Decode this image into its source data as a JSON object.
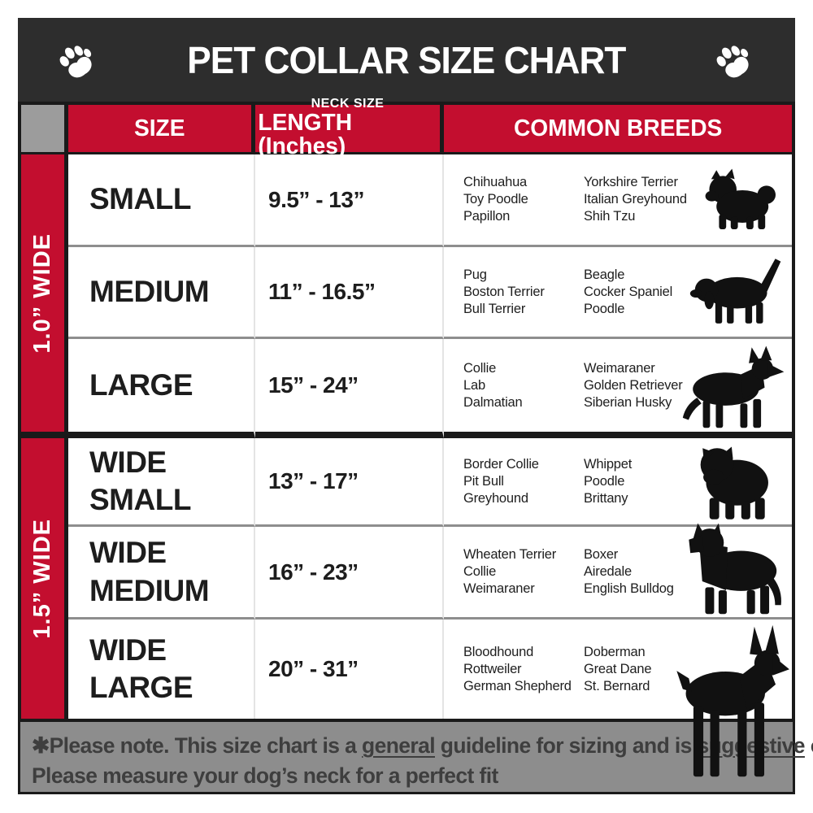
{
  "title": {
    "text": "PET COLLAR SIZE CHART",
    "paw_icon": "paw-icon"
  },
  "header": {
    "size": "SIZE",
    "neck_sub": "NECK SIZE",
    "neck_main": "LENGTH (Inches)",
    "breeds": "COMMON BREEDS"
  },
  "sections": [
    {
      "label": "1.0” WIDE"
    },
    {
      "label": "1.5” WIDE"
    }
  ],
  "rows": [
    {
      "size": "SMALL",
      "neck": "9.5” - 13”",
      "breeds_col1": [
        "Chihuahua",
        "Toy Poodle",
        "Papillon"
      ],
      "breeds_col2": [
        "Yorkshire Terrier",
        "Italian Greyhound",
        "Shih Tzu"
      ],
      "icon": "dog-shih-tzu-icon"
    },
    {
      "size": "MEDIUM",
      "neck": "11” - 16.5”",
      "breeds_col1": [
        "Pug",
        "Boston Terrier",
        "Bull Terrier"
      ],
      "breeds_col2": [
        "Beagle",
        "Cocker Spaniel",
        "Poodle"
      ],
      "icon": "dog-beagle-icon"
    },
    {
      "size": "LARGE",
      "neck": "15” - 24”",
      "breeds_col1": [
        "Collie",
        "Lab",
        "Dalmatian"
      ],
      "breeds_col2": [
        "Weimaraner",
        "Golden Retriever",
        "Siberian Husky"
      ],
      "icon": "dog-shepherd-icon"
    },
    {
      "size": "WIDE SMALL",
      "neck": "13” - 17”",
      "breeds_col1": [
        "Border Collie",
        "Pit Bull",
        "Greyhound"
      ],
      "breeds_col2": [
        "Whippet",
        "Poodle",
        "Brittany"
      ],
      "icon": "dog-bulldog-icon"
    },
    {
      "size": "WIDE MEDIUM",
      "neck": "16” - 23”",
      "breeds_col1": [
        "Wheaten Terrier",
        "Collie",
        "Weimaraner"
      ],
      "breeds_col2": [
        "Boxer",
        "Airedale",
        "English Bulldog"
      ],
      "icon": "dog-pitbull-icon"
    },
    {
      "size": "WIDE LARGE",
      "neck": "20” - 31”",
      "breeds_col1": [
        "Bloodhound",
        "Rottweiler",
        "German Shepherd"
      ],
      "breeds_col2": [
        "Doberman",
        "Great Dane",
        "St. Bernard"
      ],
      "icon": "dog-doberman-icon"
    }
  ],
  "footer": {
    "line1_part1": "✱Please note. This size chart is a ",
    "line1_underline1": "general",
    "line1_part2": " guideline for sizing and is ",
    "line1_underline2": "suggestive",
    "line1_part3": " only.",
    "line2": "Please measure your dog’s neck for a perfect fit"
  },
  "colors": {
    "accent_red": "#c30e2f",
    "title_charcoal": "#2d2d2d",
    "border_black": "#1a1a1a",
    "corner_gray": "#9c9c9c",
    "footer_gray": "#8d8d8d",
    "row_separator_gray": "#8e8e8e"
  }
}
